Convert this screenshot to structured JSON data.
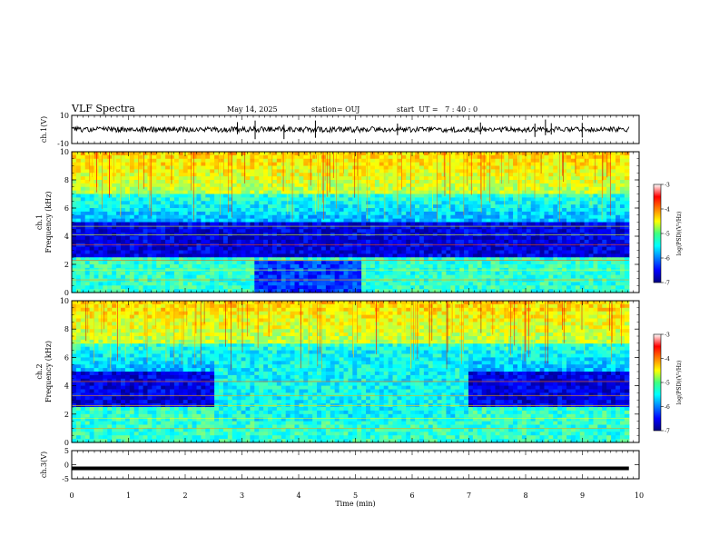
{
  "header": {
    "title": "VLF Spectra",
    "date": "May 14, 2025",
    "station": "station= OUJ",
    "start": "start  UT =   7 : 40 : 0"
  },
  "chart_data": [
    {
      "type": "line",
      "name": "ch1-waveform",
      "ylabel": "ch.1(V)",
      "xlim": [
        0,
        10
      ],
      "ylim": [
        -10,
        10
      ],
      "yticks": [
        "10",
        "-10"
      ],
      "baseline": 0,
      "data_end_min": 9.82
    },
    {
      "type": "heatmap",
      "name": "ch1-spectrogram",
      "ylabel": "ch.1\nFrequency (kHz)",
      "ylabel_top": "ch.1",
      "ylabel_bottom": "Frequency (kHz)",
      "xlim": [
        0,
        10
      ],
      "ylim": [
        0,
        10
      ],
      "yticks": [
        "0",
        "2",
        "4",
        "6",
        "8",
        "10"
      ],
      "data_end_min": 9.82,
      "colorbar": {
        "label": "log(PSD)(V²/Hz)",
        "range": [
          -7,
          -3
        ],
        "ticks": [
          "-3",
          "-4",
          "-5",
          "-6",
          "-7"
        ]
      }
    },
    {
      "type": "heatmap",
      "name": "ch2-spectrogram",
      "ylabel_top": "ch.2",
      "ylabel_bottom": "Frequency (kHz)",
      "xlim": [
        0,
        10
      ],
      "ylim": [
        0,
        10
      ],
      "yticks": [
        "0",
        "2",
        "4",
        "6",
        "8",
        "10"
      ],
      "data_end_min": 9.82,
      "colorbar": {
        "label": "log(PSD)(V²/Hz)",
        "range": [
          -7,
          -3
        ],
        "ticks": [
          "-3",
          "-4",
          "-5",
          "-6",
          "-7"
        ]
      }
    },
    {
      "type": "line",
      "name": "ch3-waveform",
      "ylabel": "ch.3(V)",
      "xlim": [
        0,
        10
      ],
      "ylim": [
        -5,
        5
      ],
      "yticks": [
        "5",
        "0",
        "-5"
      ],
      "baseline": -1.3,
      "data_end_min": 9.82
    }
  ],
  "xaxis": {
    "label": "Time (min)",
    "ticks": [
      "0",
      "1",
      "2",
      "3",
      "4",
      "5",
      "6",
      "7",
      "8",
      "9",
      "10"
    ]
  }
}
